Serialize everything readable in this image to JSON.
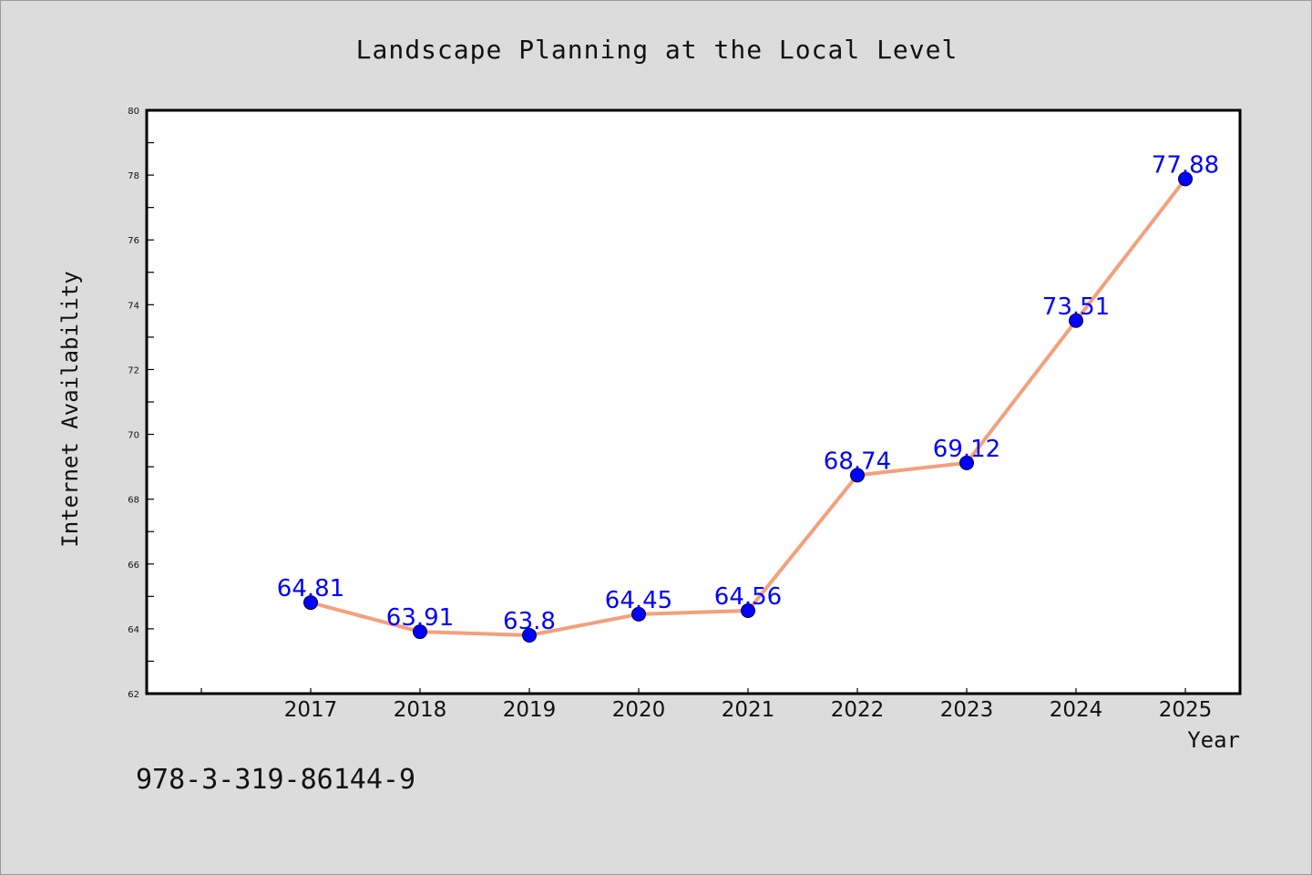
{
  "chart_data": {
    "type": "line",
    "title": "Landscape Planning at the Local Level",
    "xlabel": "Year",
    "ylabel": "Internet Availability",
    "categories": [
      "2017",
      "2018",
      "2019",
      "2020",
      "2021",
      "2022",
      "2023",
      "2024",
      "2025"
    ],
    "series": [
      {
        "values": [
          64.81,
          63.91,
          63.8,
          64.45,
          64.56,
          68.74,
          69.12,
          73.51,
          77.88
        ],
        "data_labels": [
          "64.81",
          "63.91",
          "63.8",
          "64.45",
          "64.56",
          "68.74",
          "69.12",
          "73.51",
          "77.88"
        ]
      }
    ],
    "ylim": [
      62,
      80
    ],
    "yticks": [
      "62",
      "64",
      "66",
      "68",
      "70",
      "72",
      "74",
      "76",
      "78",
      "80"
    ],
    "grid": false,
    "legend": "none",
    "line_color": "#f4a07c",
    "marker_color": "#0000ff",
    "label_color": "#0000ff",
    "annotation": "978-3-319-86144-9"
  }
}
